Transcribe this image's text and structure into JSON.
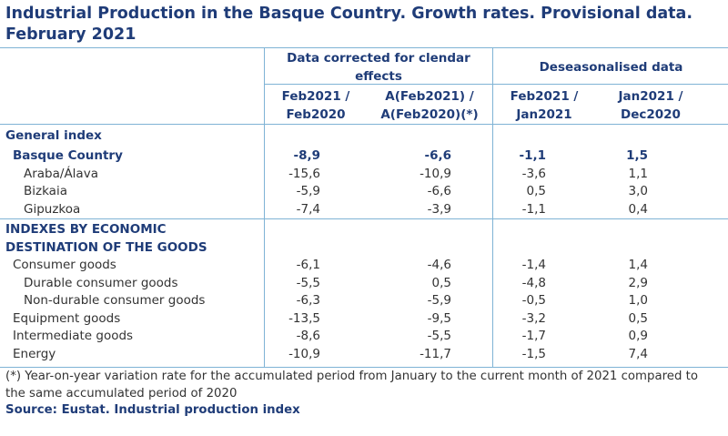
{
  "title": "Industrial Production in the Basque Country. Growth rates. Provisional data. February 2021",
  "headers": {
    "group1": "Data corrected for clendar effects",
    "group2": "Deseasonalised data",
    "col1": "Feb2021 / Feb2020",
    "col2": "A(Feb2021) / A(Feb2020)(*)",
    "col3": "Feb2021 / Jan2021",
    "col4": "Jan2021 / Dec2020"
  },
  "rows": [
    {
      "label": "General index",
      "values": [
        "",
        "",
        "",
        ""
      ]
    },
    {
      "label": "Basque Country",
      "values": [
        "-8,9",
        "-6,6",
        "-1,1",
        "1,5"
      ]
    },
    {
      "label": "Araba/Álava",
      "values": [
        "-15,6",
        "-10,9",
        "-3,6",
        "1,1"
      ]
    },
    {
      "label": "Bizkaia",
      "values": [
        "-5,9",
        "-6,6",
        "0,5",
        "3,0"
      ]
    },
    {
      "label": "Gipuzkoa",
      "values": [
        "-7,4",
        "-3,9",
        "-1,1",
        "0,4"
      ]
    },
    {
      "label": "INDEXES BY ECONOMIC",
      "values": [
        "",
        "",
        "",
        ""
      ]
    },
    {
      "label": "DESTINATION OF THE GOODS",
      "values": [
        "",
        "",
        "",
        ""
      ]
    },
    {
      "label": "Consumer goods",
      "values": [
        "-6,1",
        "-4,6",
        "-1,4",
        "1,4"
      ]
    },
    {
      "label": "Durable consumer goods",
      "values": [
        "-5,5",
        "0,5",
        "-4,8",
        "2,9"
      ]
    },
    {
      "label": "Non-durable consumer goods",
      "values": [
        "-6,3",
        "-5,9",
        "-0,5",
        "1,0"
      ]
    },
    {
      "label": "Equipment goods",
      "values": [
        "-13,5",
        "-9,5",
        "-3,2",
        "0,5"
      ]
    },
    {
      "label": "Intermediate goods",
      "values": [
        "-8,6",
        "-5,5",
        "-1,7",
        "0,9"
      ]
    },
    {
      "label": "Energy",
      "values": [
        "-10,9",
        "-11,7",
        "-1,5",
        "7,4"
      ]
    }
  ],
  "note": "(*) Year-on-year variation rate for the accumulated period from January to the current month of 2021 compared to the same accumulated period of 2020",
  "source": "Source: Eustat. Industrial production index"
}
